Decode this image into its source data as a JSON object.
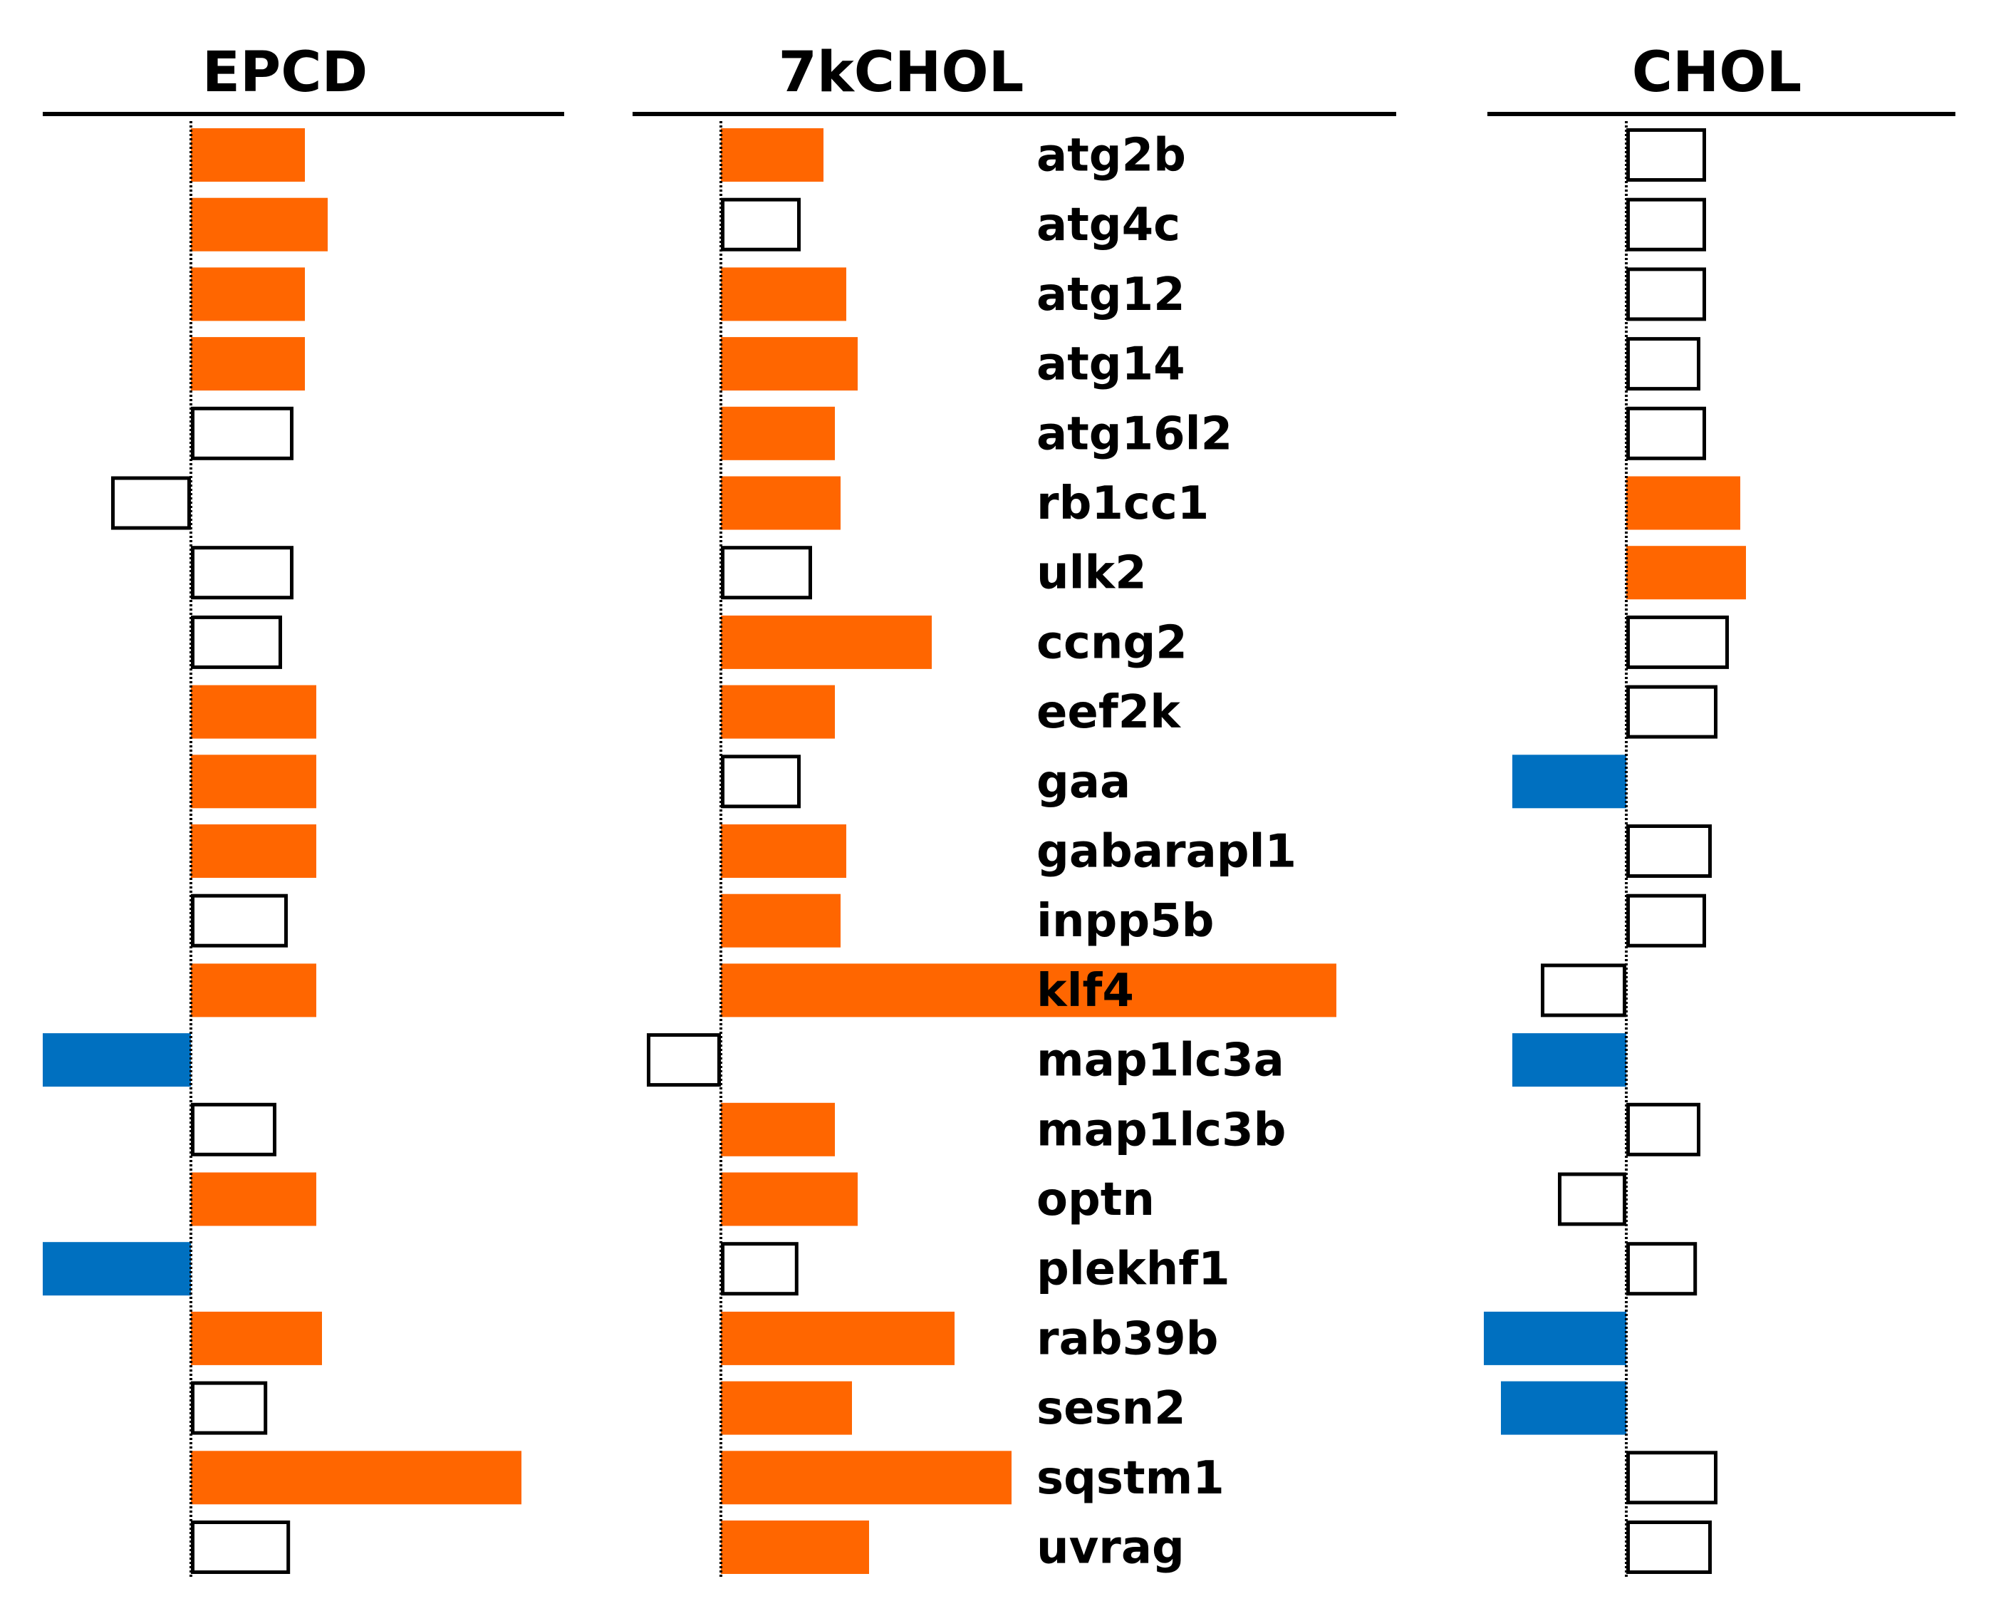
{
  "chart_data": {
    "type": "bar",
    "orientation": "horizontal",
    "categories": [
      "atg2b",
      "atg4c",
      "atg12",
      "atg14",
      "atg16l2",
      "rb1cc1",
      "ulk2",
      "ccng2",
      "eef2k",
      "gaa",
      "gabarapl1",
      "inpp5b",
      "klf4",
      "map1lc3a",
      "map1lc3b",
      "optn",
      "plekhf1",
      "rab39b",
      "sesn2",
      "sqstm1",
      "uvrag"
    ],
    "colors": {
      "up": "#ff6600",
      "down": "#0070c0",
      "not_significant": "#ffffff",
      "outline": "#000000"
    },
    "panels": [
      {
        "title": "EPCD",
        "values": [
          1.0,
          1.2,
          1.0,
          1.0,
          0.9,
          -0.7,
          0.9,
          0.8,
          1.1,
          1.1,
          1.1,
          0.85,
          1.1,
          -1.3,
          0.75,
          1.1,
          -1.3,
          1.15,
          0.67,
          2.9,
          0.87
        ],
        "status": [
          "up",
          "up",
          "up",
          "up",
          "ns",
          "ns",
          "ns",
          "ns",
          "up",
          "up",
          "up",
          "ns",
          "up",
          "down",
          "ns",
          "up",
          "down",
          "up",
          "ns",
          "up",
          "ns"
        ]
      },
      {
        "title": "7kCHOL",
        "values": [
          0.9,
          0.7,
          1.1,
          1.2,
          1.0,
          1.05,
          0.8,
          1.85,
          1.0,
          0.7,
          1.1,
          1.05,
          5.4,
          -0.65,
          1.0,
          1.2,
          0.68,
          2.05,
          1.15,
          2.55,
          1.3
        ],
        "status": [
          "up",
          "ns",
          "up",
          "up",
          "up",
          "up",
          "ns",
          "up",
          "up",
          "ns",
          "up",
          "up",
          "up",
          "ns",
          "up",
          "up",
          "ns",
          "up",
          "up",
          "up",
          "up"
        ]
      },
      {
        "title": "CHOL",
        "values": [
          0.7,
          0.7,
          0.7,
          0.65,
          0.7,
          1.0,
          1.05,
          0.9,
          0.8,
          -1.0,
          0.75,
          0.7,
          -0.75,
          -1.0,
          0.65,
          -0.6,
          0.62,
          -1.25,
          -1.1,
          0.8,
          0.75
        ],
        "status": [
          "ns",
          "ns",
          "ns",
          "ns",
          "ns",
          "up",
          "up",
          "ns",
          "ns",
          "down",
          "ns",
          "ns",
          "ns",
          "down",
          "ns",
          "ns",
          "ns",
          "down",
          "down",
          "ns",
          "ns"
        ]
      }
    ]
  }
}
